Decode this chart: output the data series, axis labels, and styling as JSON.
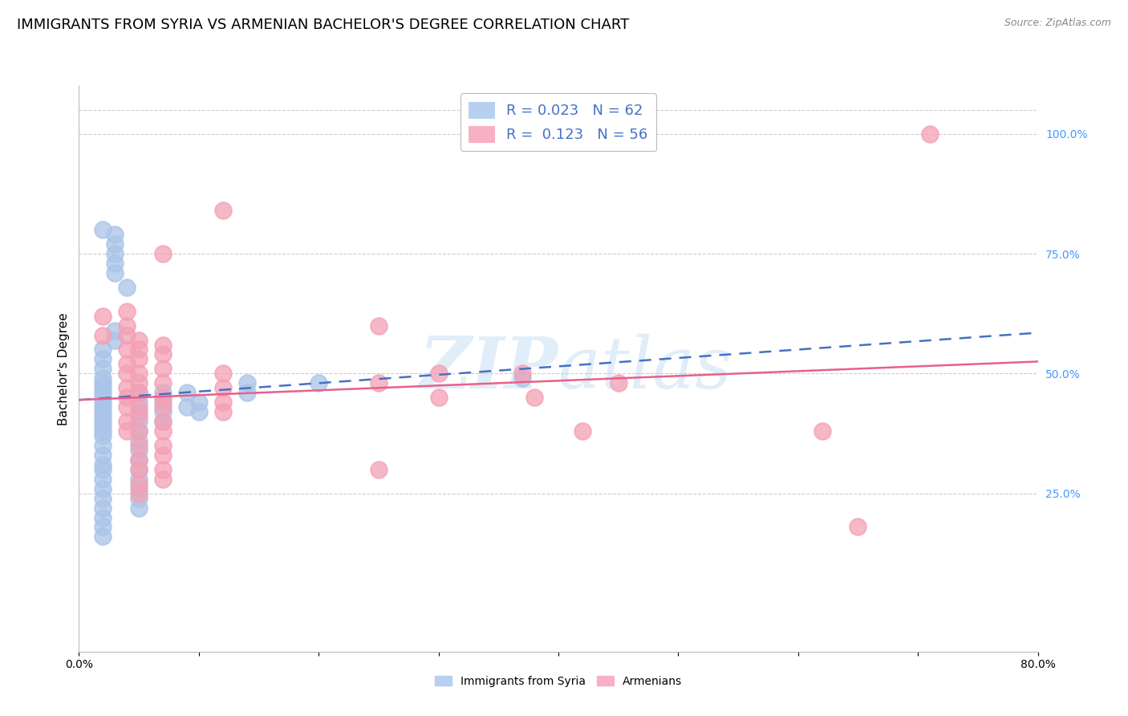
{
  "title": "IMMIGRANTS FROM SYRIA VS ARMENIAN BACHELOR'S DEGREE CORRELATION CHART",
  "source": "Source: ZipAtlas.com",
  "ylabel": "Bachelor's Degree",
  "right_yticks": [
    "100.0%",
    "75.0%",
    "50.0%",
    "25.0%"
  ],
  "right_ytick_vals": [
    1.0,
    0.75,
    0.5,
    0.25
  ],
  "watermark_line1": "ZIP",
  "watermark_line2": "atlas",
  "syria_color": "#aac4e8",
  "armenia_color": "#f4a0b5",
  "syria_line_color": "#4472c4",
  "armenia_line_color": "#e8608a",
  "syria_scatter": [
    [
      0.002,
      0.8
    ],
    [
      0.003,
      0.79
    ],
    [
      0.003,
      0.77
    ],
    [
      0.003,
      0.75
    ],
    [
      0.003,
      0.73
    ],
    [
      0.003,
      0.71
    ],
    [
      0.004,
      0.68
    ],
    [
      0.003,
      0.59
    ],
    [
      0.003,
      0.57
    ],
    [
      0.002,
      0.55
    ],
    [
      0.002,
      0.53
    ],
    [
      0.002,
      0.51
    ],
    [
      0.002,
      0.49
    ],
    [
      0.002,
      0.48
    ],
    [
      0.002,
      0.47
    ],
    [
      0.002,
      0.46
    ],
    [
      0.002,
      0.45
    ],
    [
      0.002,
      0.44
    ],
    [
      0.002,
      0.43
    ],
    [
      0.002,
      0.42
    ],
    [
      0.002,
      0.41
    ],
    [
      0.002,
      0.4
    ],
    [
      0.002,
      0.39
    ],
    [
      0.002,
      0.38
    ],
    [
      0.002,
      0.37
    ],
    [
      0.002,
      0.35
    ],
    [
      0.002,
      0.33
    ],
    [
      0.002,
      0.31
    ],
    [
      0.002,
      0.3
    ],
    [
      0.002,
      0.28
    ],
    [
      0.002,
      0.26
    ],
    [
      0.002,
      0.24
    ],
    [
      0.002,
      0.22
    ],
    [
      0.002,
      0.2
    ],
    [
      0.002,
      0.18
    ],
    [
      0.002,
      0.16
    ],
    [
      0.005,
      0.46
    ],
    [
      0.005,
      0.44
    ],
    [
      0.005,
      0.42
    ],
    [
      0.005,
      0.4
    ],
    [
      0.005,
      0.38
    ],
    [
      0.005,
      0.36
    ],
    [
      0.005,
      0.34
    ],
    [
      0.005,
      0.32
    ],
    [
      0.005,
      0.3
    ],
    [
      0.005,
      0.28
    ],
    [
      0.005,
      0.26
    ],
    [
      0.005,
      0.24
    ],
    [
      0.005,
      0.22
    ],
    [
      0.007,
      0.46
    ],
    [
      0.007,
      0.44
    ],
    [
      0.007,
      0.42
    ],
    [
      0.007,
      0.4
    ],
    [
      0.009,
      0.46
    ],
    [
      0.009,
      0.43
    ],
    [
      0.01,
      0.44
    ],
    [
      0.01,
      0.42
    ],
    [
      0.014,
      0.48
    ],
    [
      0.014,
      0.46
    ],
    [
      0.02,
      0.48
    ],
    [
      0.037,
      0.49
    ]
  ],
  "armenia_scatter": [
    [
      0.002,
      0.62
    ],
    [
      0.002,
      0.58
    ],
    [
      0.004,
      0.63
    ],
    [
      0.004,
      0.6
    ],
    [
      0.004,
      0.58
    ],
    [
      0.004,
      0.55
    ],
    [
      0.004,
      0.52
    ],
    [
      0.004,
      0.5
    ],
    [
      0.004,
      0.47
    ],
    [
      0.004,
      0.45
    ],
    [
      0.004,
      0.43
    ],
    [
      0.004,
      0.4
    ],
    [
      0.004,
      0.38
    ],
    [
      0.005,
      0.57
    ],
    [
      0.005,
      0.55
    ],
    [
      0.005,
      0.53
    ],
    [
      0.005,
      0.5
    ],
    [
      0.005,
      0.48
    ],
    [
      0.005,
      0.46
    ],
    [
      0.005,
      0.43
    ],
    [
      0.005,
      0.41
    ],
    [
      0.005,
      0.38
    ],
    [
      0.005,
      0.35
    ],
    [
      0.005,
      0.32
    ],
    [
      0.005,
      0.3
    ],
    [
      0.005,
      0.27
    ],
    [
      0.005,
      0.25
    ],
    [
      0.007,
      0.75
    ],
    [
      0.007,
      0.56
    ],
    [
      0.007,
      0.54
    ],
    [
      0.007,
      0.51
    ],
    [
      0.007,
      0.48
    ],
    [
      0.007,
      0.45
    ],
    [
      0.007,
      0.43
    ],
    [
      0.007,
      0.4
    ],
    [
      0.007,
      0.38
    ],
    [
      0.007,
      0.35
    ],
    [
      0.007,
      0.33
    ],
    [
      0.007,
      0.3
    ],
    [
      0.007,
      0.28
    ],
    [
      0.012,
      0.84
    ],
    [
      0.012,
      0.5
    ],
    [
      0.012,
      0.47
    ],
    [
      0.012,
      0.44
    ],
    [
      0.012,
      0.42
    ],
    [
      0.025,
      0.6
    ],
    [
      0.025,
      0.48
    ],
    [
      0.025,
      0.3
    ],
    [
      0.03,
      0.5
    ],
    [
      0.03,
      0.45
    ],
    [
      0.037,
      0.5
    ],
    [
      0.038,
      0.45
    ],
    [
      0.042,
      0.38
    ],
    [
      0.045,
      0.48
    ],
    [
      0.062,
      0.38
    ],
    [
      0.065,
      0.18
    ],
    [
      0.071,
      1.0
    ]
  ],
  "xlim": [
    0.0,
    0.08
  ],
  "ylim": [
    -0.08,
    1.1
  ],
  "background_color": "#ffffff",
  "grid_color": "#cccccc",
  "title_fontsize": 13,
  "axis_label_fontsize": 11,
  "tick_fontsize": 10,
  "legend_fontsize": 13
}
